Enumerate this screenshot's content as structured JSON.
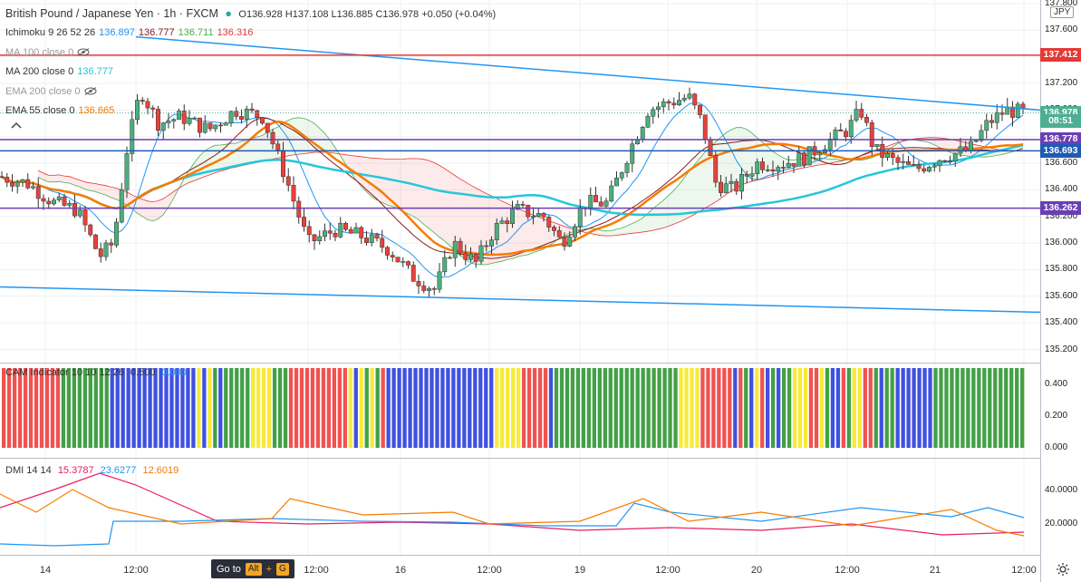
{
  "header": {
    "symbol": "British Pound / Japanese Yen · 1h · FXCM",
    "ohlc": "O136.928 H137.108 L136.885 C136.978 +0.050 (+0.04%)"
  },
  "indicators": [
    {
      "label": "Ichimoku 9 26 52 26",
      "values": [
        {
          "v": "136.897",
          "color": "#2196f3"
        },
        {
          "v": "136.777",
          "color": "#8b1a1a"
        },
        {
          "v": "136.711",
          "color": "#4caf50"
        },
        {
          "v": "136.316",
          "color": "#e53935"
        }
      ]
    },
    {
      "label": "MA 100 close 0",
      "values": [],
      "hidden": true
    },
    {
      "label": "MA 200 close 0",
      "values": [
        {
          "v": "136.777",
          "color": "#26c6da"
        }
      ]
    },
    {
      "label": "EMA 200 close 0",
      "values": [],
      "hidden": true
    },
    {
      "label": "EMA 55 close 0",
      "values": [
        {
          "v": "136.665",
          "color": "#f57c00"
        }
      ]
    }
  ],
  "currency": "JPY",
  "price_axis": [
    "137.800",
    "137.600",
    "137.400",
    "137.200",
    "137.000",
    "136.800",
    "136.600",
    "136.400",
    "136.200",
    "136.000",
    "135.800",
    "135.600",
    "135.400",
    "135.200"
  ],
  "price_tags": [
    {
      "text": "137.412",
      "color": "#e53935",
      "price": 137.412
    },
    {
      "text": "136.978",
      "color": "#4caf93",
      "price": 136.978
    },
    {
      "text": "08:51",
      "color": "#4caf93",
      "price": 136.92
    },
    {
      "text": "136.778",
      "color": "#6a3fb4",
      "price": 136.778
    },
    {
      "text": "136.693",
      "color": "#1e5bb4",
      "price": 136.693
    },
    {
      "text": "136.262",
      "color": "#6a3fb4",
      "price": 136.262
    }
  ],
  "cam": {
    "label": "CAM Indicator 10 10 12 26",
    "v1": "0.500",
    "v2": "0.000",
    "axis": [
      "0.400",
      "0.200",
      "0.000"
    ]
  },
  "dmi": {
    "label": "DMI 14 14",
    "values": [
      {
        "v": "15.3787",
        "color": "#e91e63"
      },
      {
        "v": "23.6277",
        "color": "#2196f3"
      },
      {
        "v": "12.6019",
        "color": "#f57c00"
      }
    ],
    "axis": [
      "40.0000",
      "20.0000"
    ]
  },
  "time_axis": [
    "14",
    "12:00",
    "12:00",
    "16",
    "12:00",
    "19",
    "12:00",
    "20",
    "12:00",
    "21",
    "12:00"
  ],
  "goto": {
    "label": "Go to",
    "k1": "Alt",
    "plus": "+",
    "k2": "G"
  },
  "colors": {
    "up": "#4caf7d",
    "down": "#e8413c",
    "bg": "#ffffff",
    "grid": "#eef0f3"
  }
}
